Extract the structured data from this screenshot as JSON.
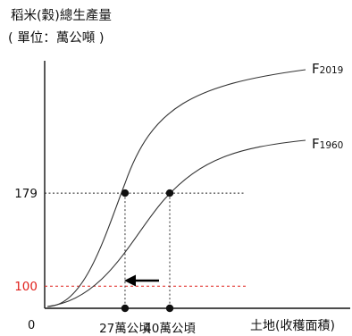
{
  "chart_data": {
    "type": "line",
    "title": "",
    "ylabel": "稻米(穀)總生產量",
    "ylabel_unit": "( 單位：萬公噸 )",
    "xlabel": "土地(收穫面積)",
    "origin_label": "0",
    "series": [
      {
        "name": "F",
        "year": "2019"
      },
      {
        "name": "F",
        "year": "1960"
      }
    ],
    "reference_lines": [
      {
        "axis": "y",
        "value": 179,
        "label": "179",
        "color": "#222222",
        "style": "dotted"
      },
      {
        "axis": "y",
        "value": 100,
        "label": "100",
        "color": "#e0201b",
        "style": "dashed"
      }
    ],
    "points": [
      {
        "series": "2019",
        "x": 27,
        "y": 179,
        "x_label": "27萬公頃"
      },
      {
        "series": "1960",
        "x": 40,
        "y": 179,
        "x_label": "40萬公頃"
      }
    ],
    "annotations": [
      {
        "type": "arrow",
        "direction": "left",
        "meaning": "land decrease"
      }
    ],
    "grid": false,
    "legend": "curve-end labels"
  },
  "colors": {
    "axis": "#111111",
    "curve": "#333333",
    "highlight_line": "#e0201b",
    "highlight_text": "#e0201b"
  }
}
